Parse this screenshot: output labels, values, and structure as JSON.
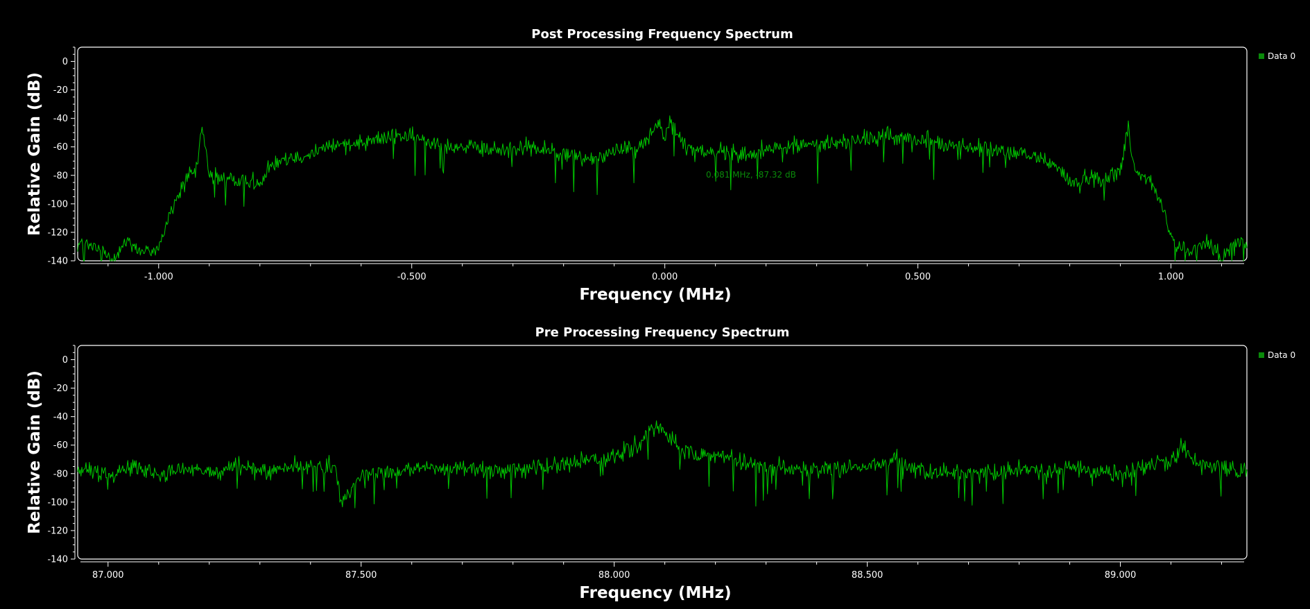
{
  "chart_data": [
    {
      "type": "line",
      "title": "Post Processing Frequency Spectrum",
      "xlabel": "Frequency (MHz)",
      "ylabel": "Relative Gain (dB)",
      "xlim": [
        -1.16,
        1.15
      ],
      "ylim": [
        -140,
        10
      ],
      "x_ticks": [
        -1.0,
        -0.5,
        0.0,
        0.5,
        1.0
      ],
      "x_tick_labels": [
        "-1.000",
        "-0.500",
        "0.000",
        "0.500",
        "1.000"
      ],
      "y_ticks": [
        0,
        -20,
        -40,
        -60,
        -80,
        -100,
        -120,
        -140
      ],
      "y_tick_labels": [
        "0",
        "-20",
        "-40",
        "-60",
        "-80",
        "-100",
        "-120",
        "-140"
      ],
      "legend_position": "top-right",
      "annotation": "0.081 MHz, -87.32 dB",
      "color": "#00c800",
      "series": [
        {
          "name": "Data 0",
          "x": [
            -1.15,
            -1.12,
            -1.09,
            -1.06,
            -1.03,
            -1.0,
            -0.98,
            -0.96,
            -0.94,
            -0.925,
            -0.915,
            -0.9,
            -0.88,
            -0.86,
            -0.84,
            -0.82,
            -0.8,
            -0.78,
            -0.76,
            -0.72,
            -0.68,
            -0.64,
            -0.6,
            -0.56,
            -0.52,
            -0.48,
            -0.44,
            -0.4,
            -0.36,
            -0.32,
            -0.28,
            -0.24,
            -0.2,
            -0.16,
            -0.12,
            -0.08,
            -0.04,
            -0.01,
            0.0,
            0.01,
            0.04,
            0.08,
            0.12,
            0.16,
            0.2,
            0.24,
            0.28,
            0.32,
            0.36,
            0.4,
            0.44,
            0.48,
            0.52,
            0.56,
            0.6,
            0.64,
            0.68,
            0.72,
            0.76,
            0.8,
            0.82,
            0.84,
            0.86,
            0.88,
            0.9,
            0.915,
            0.93,
            0.95,
            0.97,
            0.99,
            1.01,
            1.04,
            1.07,
            1.1,
            1.13,
            1.15
          ],
          "y": [
            -128,
            -132,
            -138,
            -125,
            -135,
            -130,
            -110,
            -92,
            -80,
            -78,
            -45,
            -78,
            -84,
            -80,
            -86,
            -82,
            -88,
            -72,
            -68,
            -66,
            -62,
            -58,
            -56,
            -54,
            -52,
            -55,
            -58,
            -60,
            -62,
            -62,
            -60,
            -62,
            -65,
            -68,
            -66,
            -60,
            -58,
            -42,
            -55,
            -42,
            -60,
            -62,
            -64,
            -66,
            -62,
            -60,
            -58,
            -58,
            -56,
            -55,
            -52,
            -54,
            -56,
            -58,
            -60,
            -62,
            -64,
            -66,
            -70,
            -84,
            -86,
            -80,
            -84,
            -80,
            -78,
            -45,
            -78,
            -80,
            -90,
            -110,
            -130,
            -135,
            -125,
            -138,
            -125,
            -132
          ]
        }
      ]
    },
    {
      "type": "line",
      "title": "Pre Processing Frequency Spectrum",
      "xlabel": "Frequency (MHz)",
      "ylabel": "Relative Gain (dB)",
      "xlim": [
        86.94,
        89.25
      ],
      "ylim": [
        -140,
        10
      ],
      "x_ticks": [
        87.0,
        87.5,
        88.0,
        88.5,
        89.0
      ],
      "x_tick_labels": [
        "87.000",
        "87.500",
        "88.000",
        "88.500",
        "89.000"
      ],
      "y_ticks": [
        0,
        -20,
        -40,
        -60,
        -80,
        -100,
        -120,
        -140
      ],
      "y_tick_labels": [
        "0",
        "-20",
        "-40",
        "-60",
        "-80",
        "-100",
        "-120",
        "-140"
      ],
      "legend_position": "top-right",
      "color": "#00c800",
      "series": [
        {
          "name": "Data 0",
          "x": [
            86.95,
            87.0,
            87.05,
            87.1,
            87.15,
            87.2,
            87.25,
            87.3,
            87.35,
            87.4,
            87.45,
            87.46,
            87.5,
            87.6,
            87.7,
            87.8,
            87.9,
            87.95,
            88.0,
            88.05,
            88.08,
            88.1,
            88.15,
            88.2,
            88.25,
            88.3,
            88.4,
            88.5,
            88.55,
            88.6,
            88.7,
            88.8,
            88.9,
            89.0,
            89.05,
            89.1,
            89.12,
            89.15,
            89.2,
            89.25
          ],
          "y": [
            -78,
            -80,
            -74,
            -82,
            -76,
            -80,
            -75,
            -78,
            -76,
            -74,
            -76,
            -102,
            -80,
            -78,
            -76,
            -78,
            -74,
            -70,
            -68,
            -60,
            -46,
            -52,
            -68,
            -66,
            -70,
            -76,
            -78,
            -74,
            -70,
            -78,
            -80,
            -78,
            -76,
            -80,
            -76,
            -72,
            -60,
            -74,
            -76,
            -78
          ]
        }
      ]
    }
  ]
}
